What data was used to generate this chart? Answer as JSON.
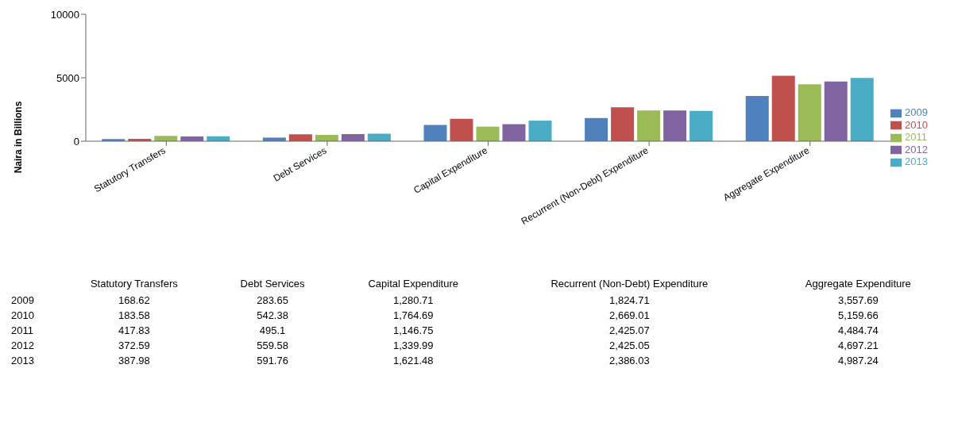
{
  "chart_data": {
    "type": "bar",
    "ylabel": "Naira in Billions",
    "categories": [
      "Statutory Transfers",
      "Debt Services",
      "Capital Expenditure",
      "Recurrent (Non-Debt) Expenditure",
      "Aggregate Expenditure"
    ],
    "ylim": [
      0,
      10000
    ],
    "yticks": [
      0,
      5000,
      10000
    ],
    "grid": false,
    "legend": "right",
    "series": [
      {
        "name": "2009",
        "color": "#4f81bd",
        "values": [
          168.62,
          283.65,
          1280.71,
          1824.71,
          3557.69
        ],
        "value_labels": [
          "168.62",
          "283.65",
          "1,280.71",
          "1,824.71",
          "3,557.69"
        ]
      },
      {
        "name": "2010",
        "color": "#c0504d",
        "values": [
          183.58,
          542.38,
          1764.69,
          2669.01,
          5159.66
        ],
        "value_labels": [
          "183.58",
          "542.38",
          "1,764.69",
          "2,669.01",
          "5,159.66"
        ]
      },
      {
        "name": "2011",
        "color": "#9bbb59",
        "values": [
          417.83,
          495.1,
          1146.75,
          2425.07,
          4484.74
        ],
        "value_labels": [
          "417.83",
          "495.1",
          "1,146.75",
          "2,425.07",
          "4,484.74"
        ]
      },
      {
        "name": "2012",
        "color": "#8064a2",
        "values": [
          372.59,
          559.58,
          1339.99,
          2425.05,
          4697.21
        ],
        "value_labels": [
          "372.59",
          "559.58",
          "1,339.99",
          "2,425.05",
          "4,697.21"
        ]
      },
      {
        "name": "2013",
        "color": "#4bacc6",
        "values": [
          387.98,
          591.76,
          1621.48,
          2386.03,
          4987.24
        ],
        "value_labels": [
          "387.98",
          "591.76",
          "1,621.48",
          "2,386.03",
          "4,987.24"
        ]
      }
    ]
  }
}
